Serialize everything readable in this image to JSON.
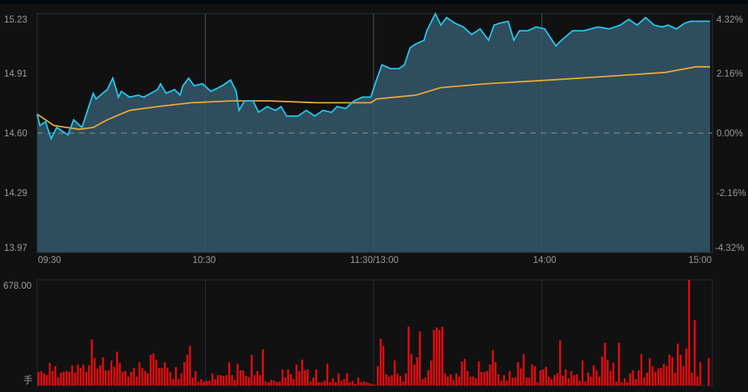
{
  "chart_data": [
    {
      "type": "area",
      "x_ticks": [
        "09:30",
        "10:30",
        "11:30/13:00",
        "14:00",
        "15:00"
      ],
      "y_ticks_left": [
        "15.23",
        "14.91",
        "14.60",
        "14.29",
        "13.97"
      ],
      "y_ticks_right": [
        "4.32%",
        "2.16%",
        "0.00%",
        "-2.16%",
        "-4.32%"
      ],
      "ylim": [
        13.97,
        15.23
      ],
      "reference_price": 14.6,
      "colors": {
        "price": "#22c8ee",
        "average": "#e6a83a",
        "fill": "#2f4d5d",
        "reference": "#6f8c84"
      },
      "series": [
        {
          "points": [
            [
              "09:30",
              14.7
            ],
            [
              "09:31",
              14.64
            ],
            [
              "09:33",
              14.66
            ],
            [
              "09:35",
              14.57
            ],
            [
              "09:37",
              14.63
            ],
            [
              "09:41",
              14.59
            ],
            [
              "09:43",
              14.67
            ],
            [
              "09:46",
              14.63
            ],
            [
              "09:48",
              14.72
            ],
            [
              "09:50",
              14.81
            ],
            [
              "09:51",
              14.78
            ],
            [
              "09:55",
              14.83
            ],
            [
              "09:57",
              14.89
            ],
            [
              "09:59",
              14.79
            ],
            [
              "10:00",
              14.82
            ],
            [
              "10:03",
              14.79
            ],
            [
              "10:06",
              14.8
            ],
            [
              "10:08",
              14.79
            ],
            [
              "10:13",
              14.83
            ],
            [
              "10:14",
              14.86
            ],
            [
              "10:16",
              14.81
            ],
            [
              "10:19",
              14.83
            ],
            [
              "10:21",
              14.8
            ],
            [
              "10:22",
              14.85
            ],
            [
              "10:24",
              14.89
            ],
            [
              "10:26",
              14.85
            ],
            [
              "10:29",
              14.86
            ],
            [
              "10:32",
              14.82
            ],
            [
              "10:36",
              14.85
            ],
            [
              "10:39",
              14.88
            ],
            [
              "10:41",
              14.82
            ],
            [
              "10:42",
              14.72
            ],
            [
              "10:44",
              14.77
            ],
            [
              "10:47",
              14.77
            ],
            [
              "10:49",
              14.71
            ],
            [
              "10:52",
              14.74
            ],
            [
              "10:55",
              14.72
            ],
            [
              "10:57",
              14.74
            ],
            [
              "10:59",
              14.69
            ],
            [
              "11:03",
              14.69
            ],
            [
              "11:06",
              14.72
            ],
            [
              "11:09",
              14.69
            ],
            [
              "11:12",
              14.72
            ],
            [
              "11:15",
              14.71
            ],
            [
              "11:17",
              14.74
            ],
            [
              "11:20",
              14.73
            ],
            [
              "11:23",
              14.77
            ],
            [
              "11:26",
              14.79
            ],
            [
              "11:29",
              14.79
            ],
            [
              "13:01",
              14.88
            ],
            [
              "13:03",
              14.96
            ],
            [
              "13:06",
              14.94
            ],
            [
              "13:09",
              14.94
            ],
            [
              "13:11",
              14.96
            ],
            [
              "13:13",
              15.05
            ],
            [
              "13:15",
              15.07
            ],
            [
              "13:18",
              15.09
            ],
            [
              "13:19",
              15.14
            ],
            [
              "13:21",
              15.2
            ],
            [
              "13:22",
              15.25
            ],
            [
              "13:24",
              15.17
            ],
            [
              "13:26",
              15.21
            ],
            [
              "13:29",
              15.18
            ],
            [
              "13:32",
              15.16
            ],
            [
              "13:35",
              15.12
            ],
            [
              "13:38",
              15.15
            ],
            [
              "13:41",
              15.09
            ],
            [
              "13:43",
              15.17
            ],
            [
              "13:45",
              15.18
            ],
            [
              "13:48",
              15.19
            ],
            [
              "13:50",
              15.09
            ],
            [
              "13:52",
              15.14
            ],
            [
              "13:55",
              15.14
            ],
            [
              "13:58",
              15.16
            ],
            [
              "14:01",
              15.15
            ],
            [
              "14:05",
              15.06
            ],
            [
              "14:07",
              15.09
            ],
            [
              "14:11",
              15.14
            ],
            [
              "14:15",
              15.14
            ],
            [
              "14:20",
              15.16
            ],
            [
              "14:24",
              15.15
            ],
            [
              "14:28",
              15.17
            ],
            [
              "14:31",
              15.2
            ],
            [
              "14:34",
              15.17
            ],
            [
              "14:37",
              15.21
            ],
            [
              "14:40",
              15.17
            ],
            [
              "14:43",
              15.16
            ],
            [
              "14:45",
              15.17
            ],
            [
              "14:48",
              15.15
            ],
            [
              "14:51",
              15.18
            ],
            [
              "14:53",
              15.19
            ],
            [
              "15:00",
              15.19
            ]
          ]
        },
        {
          "points": [
            [
              "09:30",
              14.7
            ],
            [
              "09:36",
              14.64
            ],
            [
              "09:45",
              14.62
            ],
            [
              "09:50",
              14.63
            ],
            [
              "09:55",
              14.67
            ],
            [
              "10:03",
              14.72
            ],
            [
              "10:13",
              14.74
            ],
            [
              "10:25",
              14.76
            ],
            [
              "10:39",
              14.77
            ],
            [
              "10:53",
              14.77
            ],
            [
              "11:10",
              14.76
            ],
            [
              "11:29",
              14.76
            ],
            [
              "13:01",
              14.78
            ],
            [
              "13:15",
              14.8
            ],
            [
              "13:24",
              14.84
            ],
            [
              "13:40",
              14.86
            ],
            [
              "14:03",
              14.88
            ],
            [
              "14:24",
              14.9
            ],
            [
              "14:44",
              14.92
            ],
            [
              "14:55",
              14.95
            ],
            [
              "15:00",
              14.95
            ]
          ]
        }
      ]
    },
    {
      "type": "bar",
      "y_top_label": "678.00",
      "unit_label": "手",
      "ylim": [
        0,
        678
      ],
      "color": "#f0090c",
      "values": [
        88,
        93,
        78,
        67,
        145,
        93,
        124,
        52,
        83,
        88,
        93,
        88,
        130,
        83,
        135,
        114,
        135,
        88,
        130,
        295,
        176,
        109,
        130,
        181,
        98,
        98,
        161,
        119,
        218,
        145,
        88,
        93,
        57,
        88,
        114,
        57,
        150,
        114,
        93,
        78,
        197,
        207,
        166,
        114,
        114,
        150,
        114,
        88,
        41,
        119,
        41,
        78,
        150,
        197,
        254,
        52,
        93,
        26,
        41,
        26,
        31,
        31,
        78,
        41,
        67,
        67,
        62,
        67,
        150,
        67,
        36,
        140,
        98,
        98,
        62,
        52,
        197,
        67,
        93,
        67,
        233,
        26,
        21,
        36,
        31,
        21,
        26,
        104,
        52,
        104,
        73,
        41,
        135,
        93,
        166,
        98,
        104,
        26,
        52,
        104,
        21,
        21,
        31,
        140,
        21,
        47,
        21,
        78,
        31,
        41,
        78,
        21,
        31,
        10,
        52,
        21,
        26,
        21,
        16,
        10,
        5,
        124,
        300,
        254,
        73,
        57,
        67,
        161,
        78,
        62,
        26,
        78,
        378,
        202,
        135,
        181,
        347,
        41,
        52,
        98,
        161,
        357,
        373,
        357,
        378,
        78,
        57,
        73,
        36,
        78,
        57,
        155,
        171,
        93,
        57,
        57,
        47,
        155,
        88,
        88,
        93,
        135,
        228,
        150,
        73,
        31,
        67,
        31,
        93,
        52,
        52,
        150,
        109,
        202,
        52,
        52,
        135,
        124,
        21,
        98,
        104,
        119,
        57,
        41,
        67,
        78,
        290,
        62,
        104,
        47,
        93,
        67,
        73,
        31,
        161,
        26,
        83,
        57,
        130,
        98,
        57,
        186,
        275,
        166,
        93,
        145,
        26,
        275,
        21,
        47,
        21,
        78,
        98,
        41,
        98,
        202,
        52,
        83,
        176,
        124,
        88,
        109,
        114,
        140,
        124,
        197,
        181,
        83,
        269,
        197,
        124,
        238,
        678,
        83,
        420,
        57,
        150,
        0,
        0,
        176
      ]
    }
  ]
}
